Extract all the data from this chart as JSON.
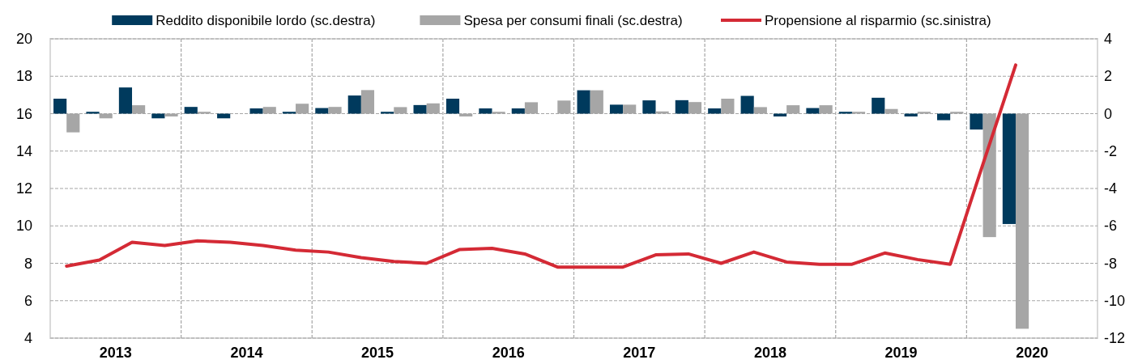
{
  "chart_data": {
    "type": "bar",
    "x": [
      2013.125,
      2013.375,
      2013.625,
      2013.875,
      2014.125,
      2014.375,
      2014.625,
      2014.875,
      2015.125,
      2015.375,
      2015.625,
      2015.875,
      2016.125,
      2016.375,
      2016.625,
      2016.875,
      2017.125,
      2017.375,
      2017.625,
      2017.875,
      2018.125,
      2018.375,
      2018.625,
      2018.875,
      2019.125,
      2019.375,
      2019.625,
      2019.875,
      2020.125,
      2020.375
    ],
    "xlim": [
      2013,
      2021
    ],
    "xticks": [
      {
        "value": 2013.5,
        "label": "2013"
      },
      {
        "value": 2014,
        "label": null
      },
      {
        "value": 2014.5,
        "label": "2014"
      },
      {
        "value": 2015,
        "label": null
      },
      {
        "value": 2015.5,
        "label": "2015"
      },
      {
        "value": 2016,
        "label": null
      },
      {
        "value": 2016.5,
        "label": "2016"
      },
      {
        "value": 2017,
        "label": null
      },
      {
        "value": 2017.5,
        "label": "2017"
      },
      {
        "value": 2018,
        "label": null
      },
      {
        "value": 2018.5,
        "label": "2018"
      },
      {
        "value": 2019,
        "label": null
      },
      {
        "value": 2019.5,
        "label": "2019"
      },
      {
        "value": 2020,
        "label": null
      },
      {
        "value": 2020.5,
        "label": "2020"
      }
    ],
    "ylim": [
      4,
      20
    ],
    "yticks": [
      4,
      6,
      8,
      10,
      12,
      14,
      16,
      18,
      20
    ],
    "y2lim": [
      -12,
      4
    ],
    "y2ticks": [
      -12,
      -10,
      -8,
      -6,
      -4,
      -2,
      0,
      2,
      4
    ],
    "grid": true,
    "legend": "top",
    "series": [
      {
        "name": "Reddito disponibile lordo (sc.destra)",
        "axis": "y2",
        "color": "#003a5d",
        "values": [
          0.8,
          0.1,
          1.4,
          -0.25,
          0.36,
          -0.25,
          0.28,
          0.1,
          0.3,
          0.97,
          0.1,
          0.46,
          0.8,
          0.28,
          0.28,
          0,
          1.25,
          0.48,
          0.71,
          0.72,
          0.28,
          0.95,
          -0.15,
          0.3,
          0.1,
          0.85,
          -0.15,
          -0.35,
          -0.85,
          -5.9
        ]
      },
      {
        "name": "Spesa per consumi finali (sc.destra)",
        "axis": "y2",
        "color": "#a6a6a6",
        "values": [
          -1.0,
          -0.25,
          0.45,
          -0.15,
          0.1,
          0,
          0.36,
          0.53,
          0.36,
          1.26,
          0.35,
          0.55,
          -0.15,
          0.1,
          0.61,
          0.7,
          1.25,
          0.48,
          0.12,
          0.62,
          0.8,
          0.35,
          0.45,
          0.45,
          0.1,
          0.25,
          0.1,
          0.1,
          -6.6,
          -11.5
        ]
      },
      {
        "name": "Propensione al risparmio (sc.sinistra)",
        "type": "line",
        "color": "#d42a35",
        "values": [
          7.85,
          8.17,
          9.12,
          8.95,
          9.2,
          9.12,
          8.95,
          8.7,
          8.6,
          8.3,
          8.1,
          8.0,
          8.73,
          8.8,
          8.5,
          7.8,
          7.8,
          7.8,
          8.45,
          8.5,
          8.0,
          8.6,
          8.07,
          7.95,
          7.95,
          8.55,
          8.2,
          7.95,
          13.3,
          18.6
        ]
      }
    ]
  }
}
